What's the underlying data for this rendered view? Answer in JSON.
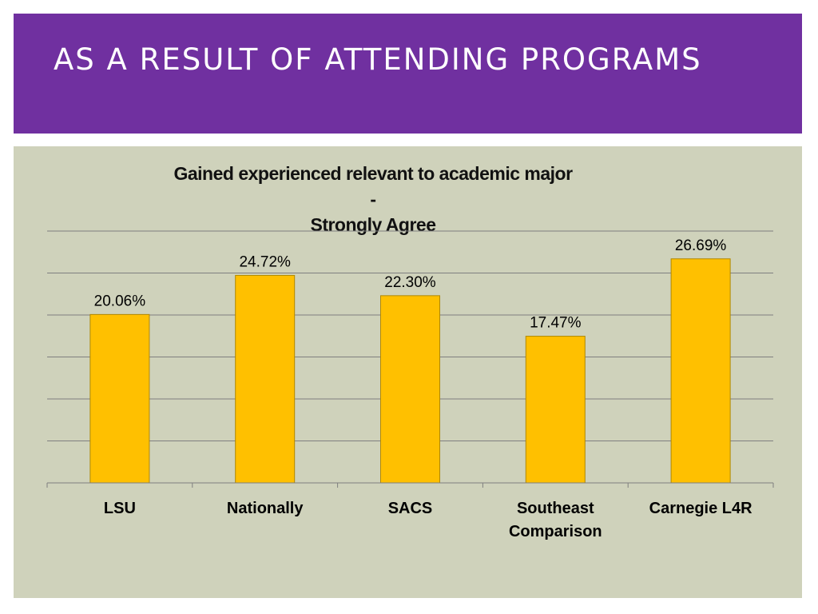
{
  "slide": {
    "title": "AS A RESULT OF ATTENDING PROGRAMS"
  },
  "colors": {
    "header_bg": "#7030a0",
    "panel_bg": "#cfd2bb",
    "bar_fill": "#ffc000",
    "bar_stroke": "#b08800",
    "gridline": "#7f7f7f"
  },
  "chart_data": {
    "type": "bar",
    "title": "Gained experienced  relevant to academic major - Strongly Agree",
    "title_lines": [
      "Gained experienced  relevant to academic major -",
      "Strongly Agree"
    ],
    "categories": [
      "LSU",
      "Nationally",
      "SACS",
      "Southeast Comparison",
      "Carnegie L4R"
    ],
    "category_lines": [
      [
        "LSU"
      ],
      [
        "Nationally"
      ],
      [
        "SACS"
      ],
      [
        "Southeast",
        "Comparison"
      ],
      [
        "Carnegie L4R"
      ]
    ],
    "values": [
      20.06,
      24.72,
      22.3,
      17.47,
      26.69
    ],
    "data_labels": [
      "20.06%",
      "24.72%",
      "22.30%",
      "17.47%",
      "26.69%"
    ],
    "ylim": [
      0,
      30
    ],
    "grid": true,
    "xlabel": "",
    "ylabel": "",
    "legend": "none"
  }
}
